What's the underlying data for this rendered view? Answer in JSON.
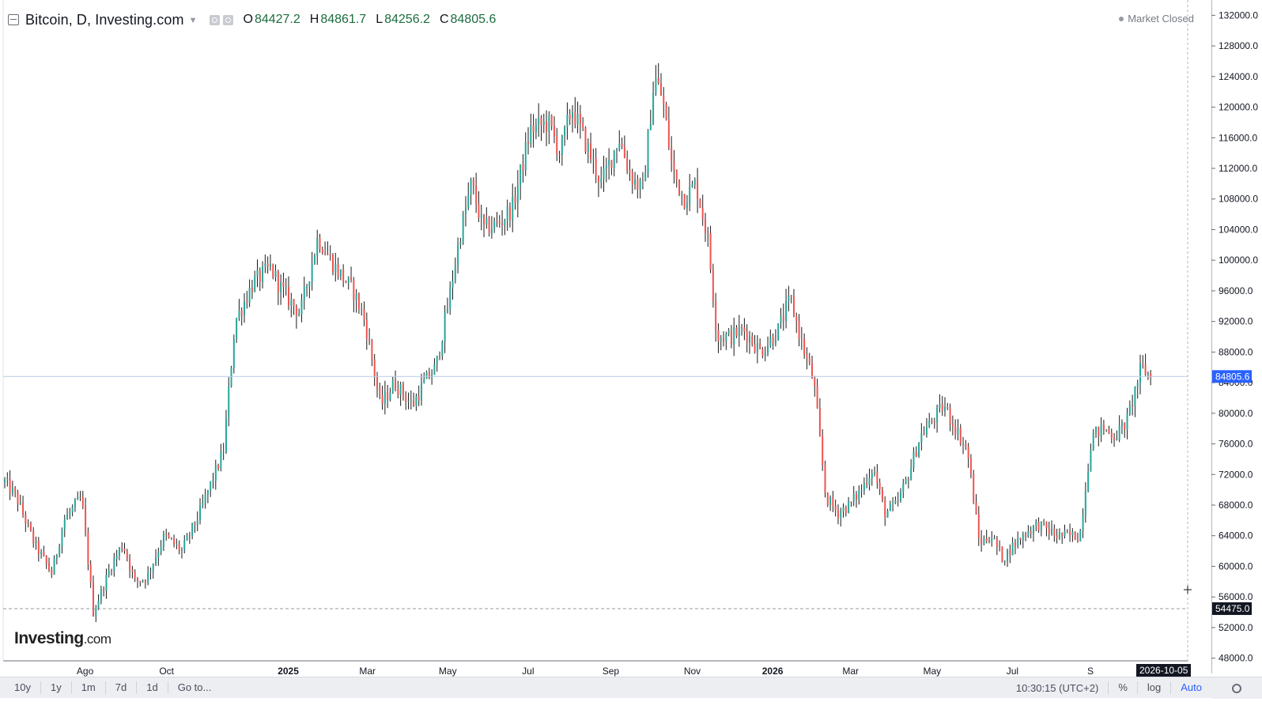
{
  "header": {
    "title": "Bitcoin, D, Investing.com",
    "ohlc": [
      {
        "key": "O",
        "value": "84427.2"
      },
      {
        "key": "H",
        "value": "84861.7"
      },
      {
        "key": "L",
        "value": "84256.2"
      },
      {
        "key": "C",
        "value": "84805.6"
      }
    ],
    "market_status": "Market Closed"
  },
  "logo": {
    "main": "Investing",
    "suffix": ".com"
  },
  "bottom_bar": {
    "ranges": [
      "10y",
      "1y",
      "1m",
      "7d",
      "1d"
    ],
    "goto": "Go to...",
    "time": "10:30:15 (UTC+2)",
    "percent": "%",
    "log": "log",
    "auto": "Auto"
  },
  "crosshair_date": "2026-10-05",
  "colors": {
    "up": "#26a69a",
    "down": "#ef5350",
    "wick": "#1a1a1a",
    "last_price": "#2962ff"
  },
  "chart_data": {
    "type": "candlestick",
    "interval": "D",
    "symbol": "Bitcoin",
    "last_price": "84805.6",
    "crosshair_price": "54475.0",
    "ylim": [
      46000,
      134000
    ],
    "y_ticks": [
      "132000.0",
      "128000.0",
      "124000.0",
      "120000.0",
      "116000.0",
      "112000.0",
      "108000.0",
      "104000.0",
      "100000.0",
      "96000.0",
      "92000.0",
      "88000.0",
      "84000.0",
      "80000.0",
      "76000.0",
      "72000.0",
      "68000.0",
      "64000.0",
      "60000.0",
      "56000.0",
      "52000.0",
      "48000.0"
    ],
    "x_ticks": [
      {
        "label": "Ago",
        "t": 0.068,
        "bold": false
      },
      {
        "label": "Oct",
        "t": 0.137,
        "bold": false
      },
      {
        "label": "2025",
        "t": 0.24,
        "bold": true
      },
      {
        "label": "Mar",
        "t": 0.307,
        "bold": false
      },
      {
        "label": "May",
        "t": 0.375,
        "bold": false
      },
      {
        "label": "Jul",
        "t": 0.443,
        "bold": false
      },
      {
        "label": "Sep",
        "t": 0.513,
        "bold": false
      },
      {
        "label": "Nov",
        "t": 0.582,
        "bold": false
      },
      {
        "label": "2026",
        "t": 0.65,
        "bold": true
      },
      {
        "label": "Mar",
        "t": 0.716,
        "bold": false
      },
      {
        "label": "May",
        "t": 0.785,
        "bold": false
      },
      {
        "label": "Jul",
        "t": 0.853,
        "bold": false
      },
      {
        "label": "S",
        "t": 0.919,
        "bold": false
      }
    ],
    "price_path": [
      [
        0.0,
        71000
      ],
      [
        0.01,
        69000
      ],
      [
        0.025,
        63000
      ],
      [
        0.04,
        59000
      ],
      [
        0.05,
        66000
      ],
      [
        0.065,
        69000
      ],
      [
        0.075,
        54000
      ],
      [
        0.09,
        60000
      ],
      [
        0.1,
        63000
      ],
      [
        0.11,
        58000
      ],
      [
        0.12,
        58500
      ],
      [
        0.135,
        64000
      ],
      [
        0.15,
        62000
      ],
      [
        0.165,
        67000
      ],
      [
        0.175,
        71000
      ],
      [
        0.185,
        75000
      ],
      [
        0.195,
        92000
      ],
      [
        0.21,
        97000
      ],
      [
        0.225,
        99000
      ],
      [
        0.235,
        96000
      ],
      [
        0.25,
        93000
      ],
      [
        0.265,
        103000
      ],
      [
        0.28,
        99000
      ],
      [
        0.295,
        96000
      ],
      [
        0.305,
        92000
      ],
      [
        0.318,
        81000
      ],
      [
        0.33,
        84000
      ],
      [
        0.345,
        81000
      ],
      [
        0.355,
        84000
      ],
      [
        0.365,
        86000
      ],
      [
        0.375,
        94000
      ],
      [
        0.385,
        103000
      ],
      [
        0.395,
        110000
      ],
      [
        0.405,
        104000
      ],
      [
        0.42,
        105000
      ],
      [
        0.43,
        107000
      ],
      [
        0.445,
        117000
      ],
      [
        0.46,
        118000
      ],
      [
        0.47,
        114000
      ],
      [
        0.48,
        120000
      ],
      [
        0.495,
        114000
      ],
      [
        0.505,
        110000
      ],
      [
        0.52,
        116000
      ],
      [
        0.53,
        111000
      ],
      [
        0.54,
        109000
      ],
      [
        0.55,
        124000
      ],
      [
        0.557,
        121000
      ],
      [
        0.565,
        112000
      ],
      [
        0.575,
        108000
      ],
      [
        0.585,
        110000
      ],
      [
        0.595,
        103000
      ],
      [
        0.603,
        90000
      ],
      [
        0.615,
        90000
      ],
      [
        0.625,
        91000
      ],
      [
        0.64,
        88000
      ],
      [
        0.655,
        91000
      ],
      [
        0.665,
        95000
      ],
      [
        0.675,
        89000
      ],
      [
        0.685,
        84000
      ],
      [
        0.695,
        69000
      ],
      [
        0.705,
        67000
      ],
      [
        0.715,
        68000
      ],
      [
        0.725,
        70000
      ],
      [
        0.735,
        73000
      ],
      [
        0.745,
        67000
      ],
      [
        0.755,
        68000
      ],
      [
        0.765,
        72000
      ],
      [
        0.775,
        77000
      ],
      [
        0.785,
        79000
      ],
      [
        0.795,
        81000
      ],
      [
        0.805,
        78000
      ],
      [
        0.815,
        75000
      ],
      [
        0.825,
        63000
      ],
      [
        0.835,
        64000
      ],
      [
        0.845,
        61000
      ],
      [
        0.855,
        63000
      ],
      [
        0.865,
        64500
      ],
      [
        0.875,
        65500
      ],
      [
        0.89,
        64000
      ],
      [
        0.9,
        64000
      ],
      [
        0.91,
        64000
      ],
      [
        0.92,
        77000
      ],
      [
        0.93,
        78000
      ],
      [
        0.94,
        77000
      ],
      [
        0.95,
        79000
      ],
      [
        0.962,
        86000
      ],
      [
        0.97,
        84800
      ]
    ]
  }
}
